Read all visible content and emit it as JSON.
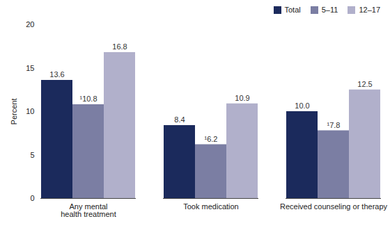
{
  "chart_data": {
    "type": "bar",
    "categories": [
      "Any mental\nhealth treatment",
      "Took medication",
      "Received counseling or therapy"
    ],
    "series": [
      {
        "name": "Total",
        "color": "#1b2a5c",
        "values": [
          13.6,
          8.4,
          10.0
        ],
        "value_labels": [
          "13.6",
          "8.4",
          "10.0"
        ]
      },
      {
        "name": "5–11",
        "color": "#7b7ea3",
        "values": [
          10.8,
          6.2,
          7.8
        ],
        "value_labels": [
          "¹10.8",
          "¹6.2",
          "¹7.8"
        ]
      },
      {
        "name": "12–17",
        "color": "#b1b0cb",
        "values": [
          16.8,
          10.9,
          12.5
        ],
        "value_labels": [
          "16.8",
          "10.9",
          "12.5"
        ]
      }
    ],
    "ylabel": "Percent",
    "ylim": [
      0,
      20
    ],
    "yticks": [
      0,
      5,
      10,
      15,
      20
    ],
    "legend": "top-right",
    "data_labels": true,
    "grid": false
  }
}
